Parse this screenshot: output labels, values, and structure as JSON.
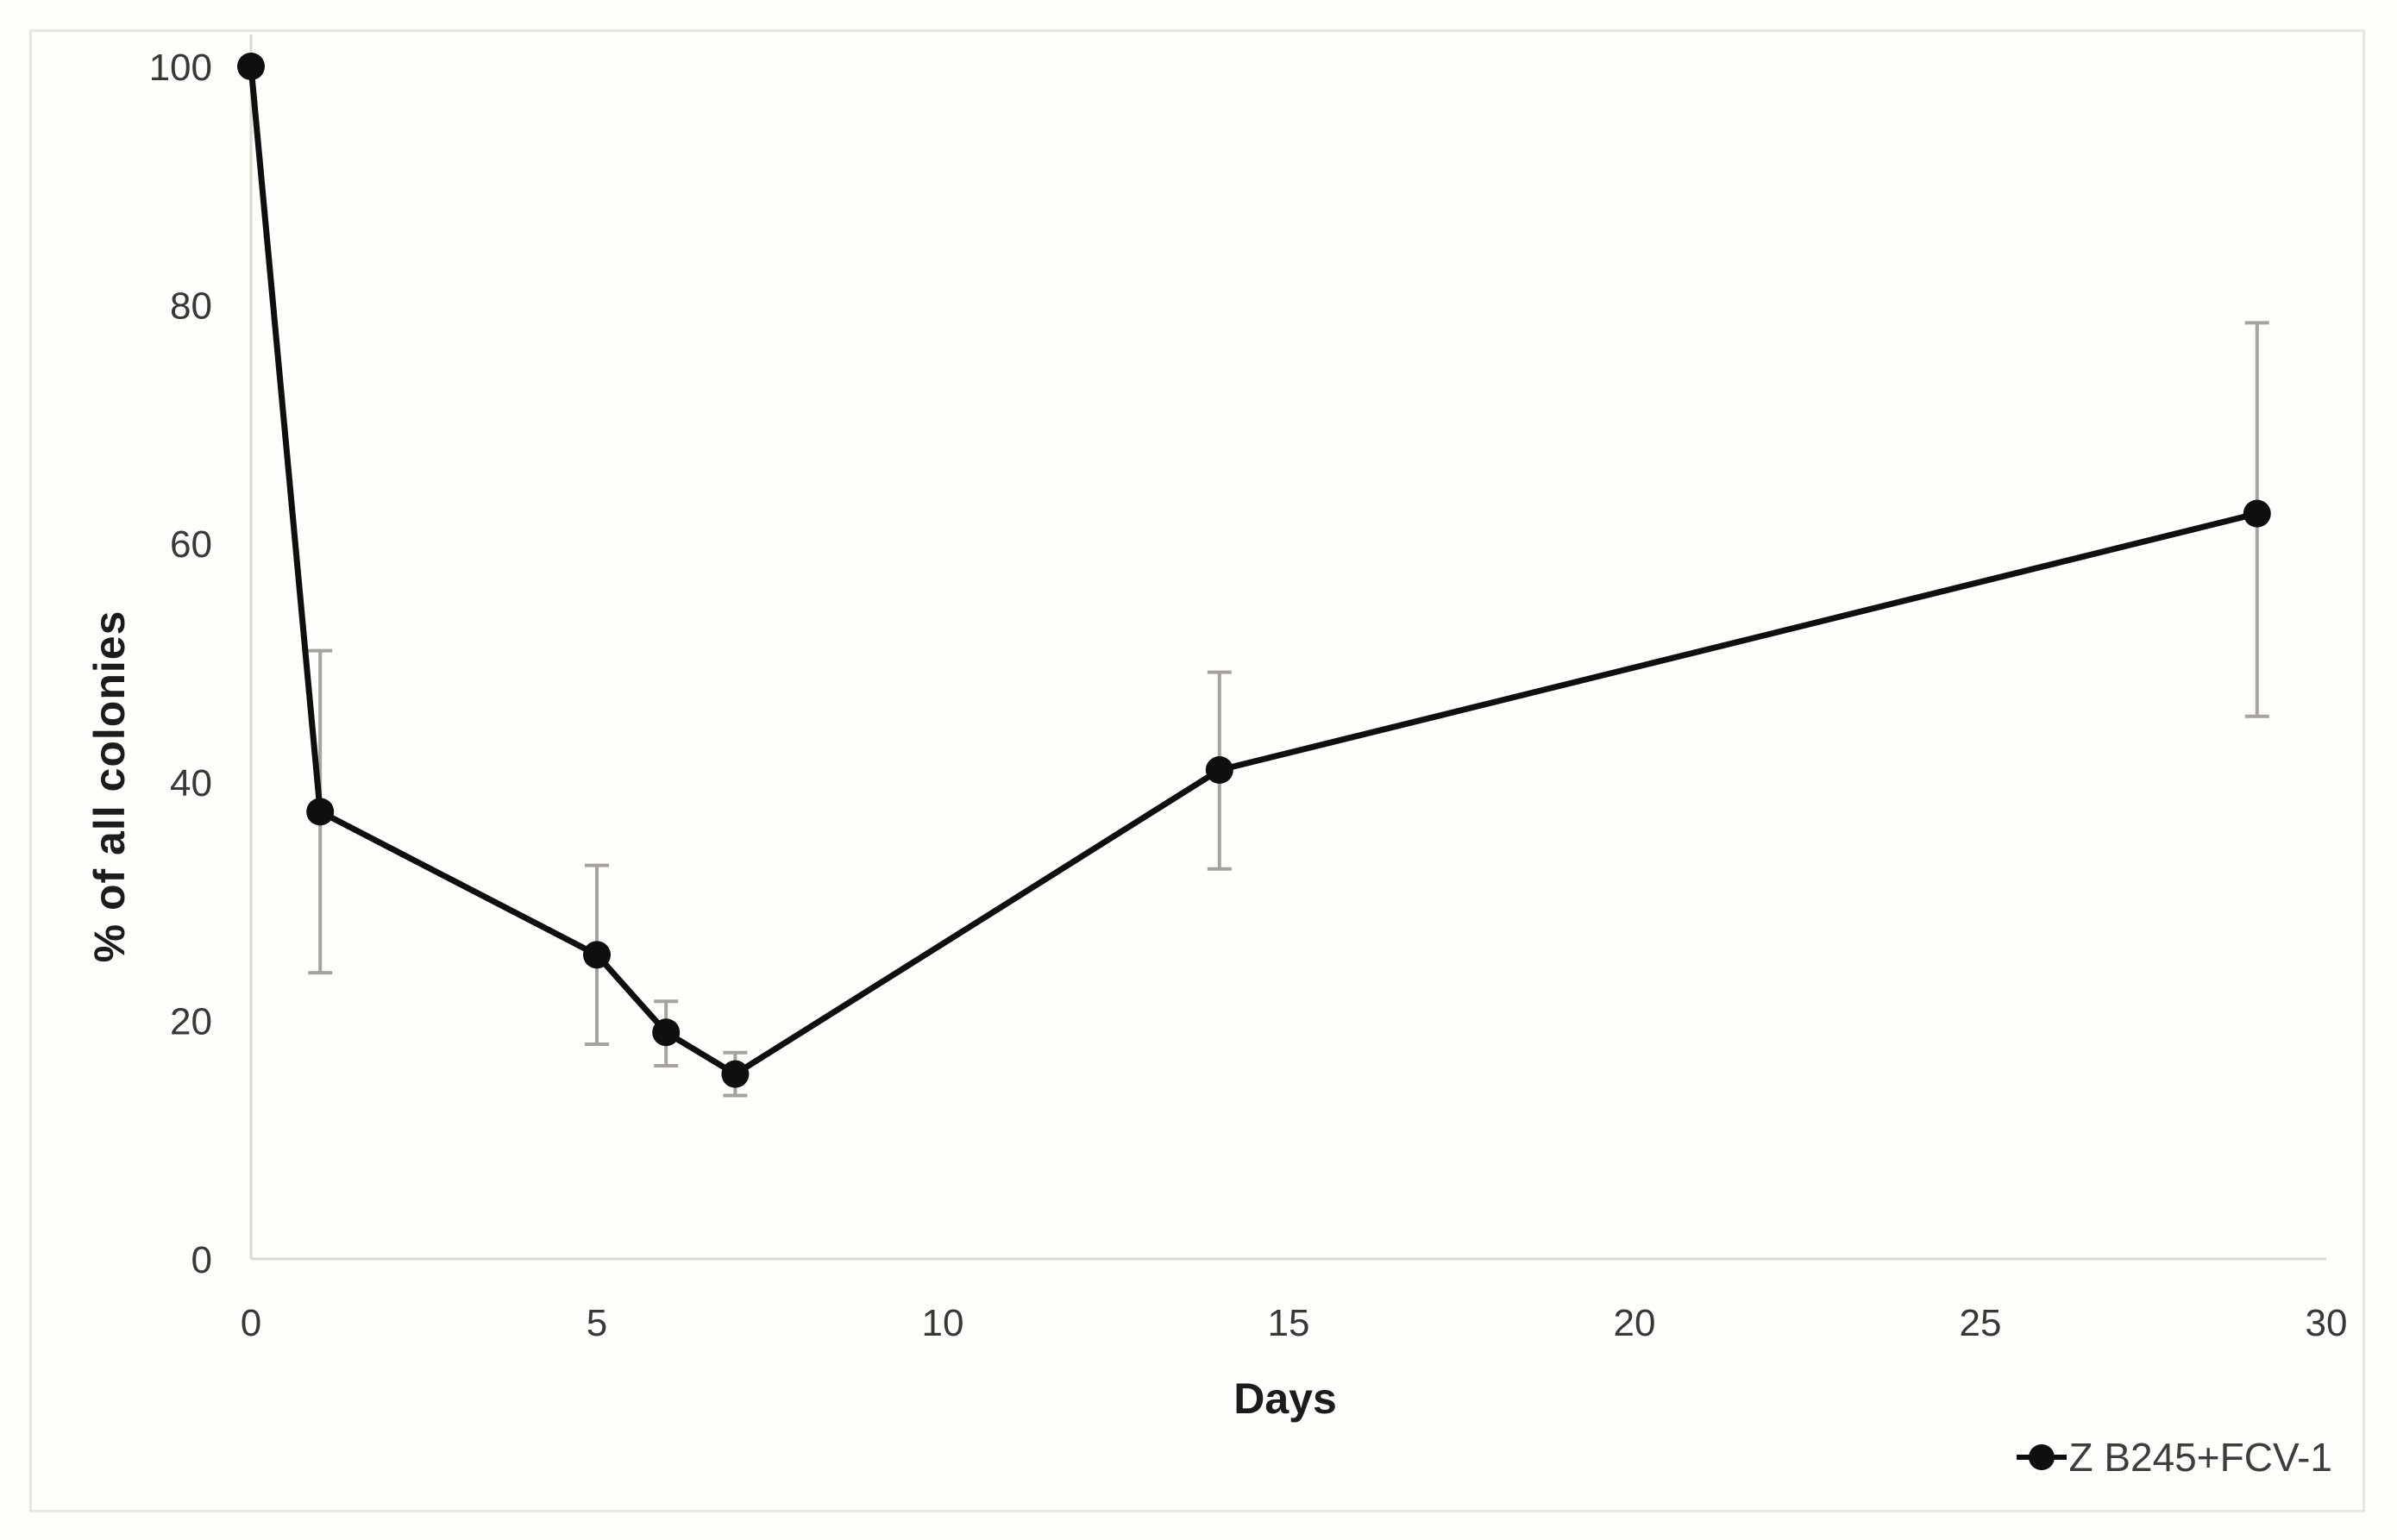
{
  "axes": {
    "xlabel": "Days",
    "ylabel": "% of all colonies"
  },
  "legend": {
    "label": "Z B245+FCV-1"
  },
  "colors": {
    "series": "#0f0f0f",
    "error_bar": "#a6a29c",
    "axis_line": "#dcd8d3",
    "tick_text": "#383838",
    "frame_border": "#e9e5e0",
    "background": "#fffefb"
  },
  "chart_data": {
    "type": "line",
    "title": "",
    "xlabel": "Days",
    "ylabel": "% of all colonies",
    "xlim": [
      0,
      30
    ],
    "ylim": [
      0,
      100
    ],
    "x_ticks": [
      0,
      5,
      10,
      15,
      20,
      25,
      30
    ],
    "y_ticks": [
      0,
      20,
      40,
      60,
      80,
      100
    ],
    "grid": false,
    "legend_position": "bottom-right",
    "series": [
      {
        "name": "Z B245+FCV-1",
        "marker": "filled-circle",
        "color": "#0f0f0f",
        "error_color": "#a6a29c",
        "x": [
          0,
          1,
          5,
          6,
          7,
          14,
          29
        ],
        "y": [
          100,
          37.5,
          25.5,
          19,
          15.5,
          41,
          62.5
        ],
        "error_low": [
          null,
          24,
          18,
          16.2,
          13.7,
          32.7,
          45.5
        ],
        "error_high": [
          null,
          51,
          33,
          21.6,
          17.3,
          49.2,
          78.5
        ]
      }
    ]
  }
}
